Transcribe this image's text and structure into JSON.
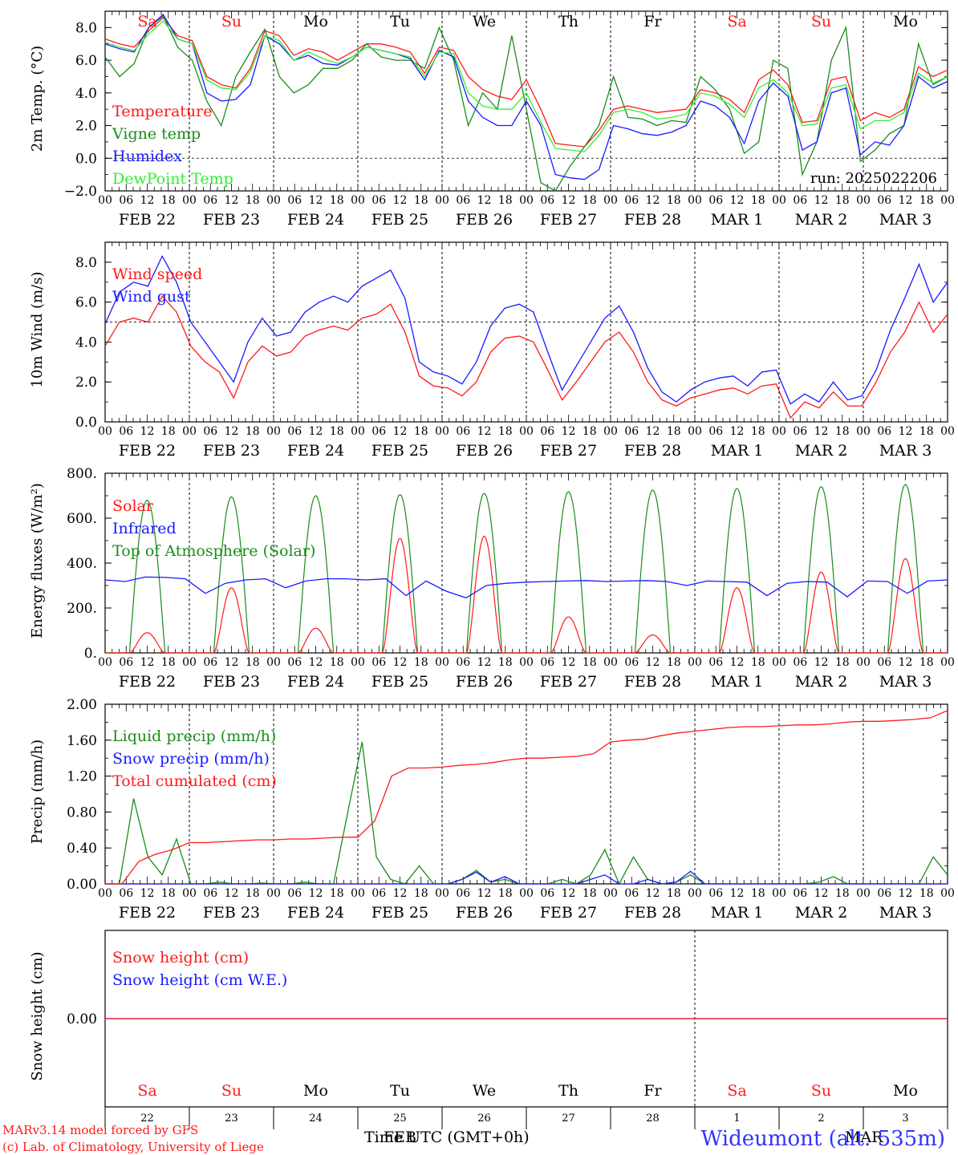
{
  "colors": {
    "red": "#ff1a1a",
    "green": "#1a8c1a",
    "blue": "#1a1aff",
    "lightgreen": "#33ee33",
    "black": "#000000",
    "titleblue": "#3333ff"
  },
  "days": {
    "labels": [
      "Sa",
      "Su",
      "Mo",
      "Tu",
      "We",
      "Th",
      "Fr",
      "Sa",
      "Su",
      "Mo"
    ],
    "weekend": [
      true,
      true,
      false,
      false,
      false,
      false,
      false,
      true,
      true,
      false
    ],
    "dates": [
      "FEB 22",
      "FEB 23",
      "FEB 24",
      "FEB 25",
      "FEB 26",
      "FEB 27",
      "FEB 28",
      "MAR  1",
      "MAR  2",
      "MAR  3"
    ],
    "day_numbers": [
      "22",
      "23",
      "24",
      "25",
      "26",
      "27",
      "28",
      "1",
      "2",
      "3"
    ],
    "hour_ticks": [
      "00",
      "06",
      "12",
      "18"
    ],
    "end_tick": "00"
  },
  "footer": {
    "credit1": "MARv3.14 model forced by GFS",
    "credit2": "(c) Lab. of Climatology, University of Liege",
    "axis_title": "Time UTC (GMT+0h)",
    "month_feb": "FEB",
    "month_mar": "MAR",
    "station": "Wideumont (alt. 535m)"
  },
  "chart_data": [
    {
      "id": "temp",
      "type": "line",
      "ylabel": "2m Temp. (°C)",
      "ylim": [
        -2,
        9
      ],
      "ticks": [
        -2,
        0,
        2,
        4,
        6,
        8
      ],
      "tick_labels": [
        "−2.0",
        "0.0",
        "2.0",
        "4.0",
        "6.0",
        "8.0"
      ],
      "ref_line": 0,
      "run_label": "run: 2025022206",
      "series": [
        {
          "name": "Temperature",
          "color": "red",
          "values": [
            7.3,
            7.0,
            6.8,
            7.8,
            8.6,
            7.5,
            7.2,
            5.0,
            4.5,
            4.3,
            5.5,
            7.8,
            7.5,
            6.3,
            6.7,
            6.5,
            6.0,
            6.5,
            7.0,
            7.0,
            6.8,
            6.5,
            5.2,
            6.8,
            6.6,
            5.0,
            4.2,
            3.8,
            3.6,
            4.8,
            3.0,
            0.9,
            0.8,
            0.7,
            1.7,
            3.0,
            3.2,
            3.0,
            2.8,
            2.9,
            3.0,
            4.2,
            4.0,
            3.6,
            2.8,
            4.8,
            5.4,
            4.5,
            2.2,
            2.3,
            4.8,
            5.0,
            2.3,
            2.8,
            2.5,
            3.0,
            5.6,
            5.0,
            5.4
          ]
        },
        {
          "name": "Vigne temp",
          "color": "green",
          "values": [
            6.2,
            5.0,
            5.8,
            8.0,
            8.7,
            6.8,
            6.0,
            3.5,
            2.0,
            5.0,
            6.5,
            7.9,
            5.0,
            4.0,
            4.5,
            5.5,
            5.5,
            6.0,
            7.0,
            6.2,
            6.0,
            6.0,
            5.5,
            8.0,
            6.0,
            2.0,
            4.0,
            3.0,
            7.5,
            3.0,
            -1.5,
            -2.8,
            -0.5,
            0.7,
            2.0,
            5.0,
            2.5,
            2.4,
            2.0,
            2.3,
            2.2,
            5.0,
            4.2,
            3.0,
            0.3,
            1.0,
            6.0,
            5.5,
            -1.0,
            1.0,
            6.0,
            8.0,
            -0.2,
            0.5,
            1.5,
            2.0,
            7.0,
            4.5,
            5.0
          ]
        },
        {
          "name": "Humidex",
          "color": "blue",
          "values": [
            7.0,
            6.7,
            6.5,
            8.0,
            8.8,
            7.3,
            7.0,
            4.0,
            3.5,
            3.6,
            4.5,
            7.5,
            7.0,
            6.0,
            6.3,
            5.8,
            5.7,
            6.2,
            6.8,
            6.6,
            6.4,
            6.1,
            4.8,
            6.6,
            6.2,
            3.5,
            2.5,
            2.0,
            2.0,
            3.5,
            2.0,
            -1.0,
            -1.2,
            -1.3,
            -0.7,
            2.0,
            1.8,
            1.5,
            1.4,
            1.6,
            2.0,
            3.5,
            3.2,
            2.5,
            0.9,
            3.5,
            4.6,
            3.8,
            0.5,
            1.0,
            4.0,
            4.3,
            0.2,
            1.0,
            0.8,
            2.0,
            5.0,
            4.3,
            4.7
          ]
        },
        {
          "name": "DewPoint Temp",
          "color": "lightgreen",
          "values": [
            7.1,
            6.8,
            6.6,
            7.6,
            8.4,
            7.3,
            7.0,
            4.8,
            4.3,
            4.2,
            5.3,
            7.5,
            7.2,
            6.0,
            6.5,
            6.1,
            5.8,
            6.2,
            6.8,
            6.6,
            6.4,
            6.2,
            5.0,
            6.5,
            6.4,
            4.0,
            3.2,
            3.0,
            3.0,
            4.0,
            2.2,
            0.6,
            0.5,
            0.4,
            1.4,
            2.8,
            3.0,
            2.8,
            2.4,
            2.5,
            2.7,
            4.0,
            3.8,
            3.3,
            2.5,
            4.3,
            4.8,
            4.0,
            2.0,
            2.1,
            4.3,
            4.5,
            1.8,
            2.3,
            2.3,
            2.8,
            5.2,
            4.6,
            5.0
          ]
        }
      ]
    },
    {
      "id": "wind",
      "type": "line",
      "ylabel": "10m Wind (m/s)",
      "ylim": [
        0,
        9
      ],
      "ticks": [
        0,
        2,
        4,
        6,
        8
      ],
      "tick_labels": [
        "0.0",
        "2.0",
        "4.0",
        "6.0",
        "8.0"
      ],
      "ref_line": 5,
      "series": [
        {
          "name": "Wind speed",
          "color": "red",
          "values": [
            3.8,
            5.0,
            5.2,
            5.0,
            6.3,
            5.5,
            3.8,
            3.0,
            2.5,
            1.2,
            3.0,
            3.8,
            3.3,
            3.5,
            4.3,
            4.6,
            4.8,
            4.6,
            5.2,
            5.4,
            5.9,
            4.5,
            2.3,
            1.8,
            1.7,
            1.3,
            2.0,
            3.5,
            4.2,
            4.3,
            4.0,
            2.6,
            1.1,
            2.0,
            3.0,
            4.0,
            4.5,
            3.5,
            2.0,
            1.1,
            0.8,
            1.2,
            1.4,
            1.6,
            1.7,
            1.4,
            1.8,
            1.9,
            0.2,
            1.0,
            0.7,
            1.5,
            0.8,
            0.8,
            2.0,
            3.5,
            4.5,
            6.0,
            4.5,
            5.4
          ]
        },
        {
          "name": "Wind gust",
          "color": "blue",
          "values": [
            4.9,
            6.5,
            7.0,
            6.8,
            8.3,
            7.0,
            5.0,
            4.0,
            3.0,
            2.0,
            4.0,
            5.2,
            4.3,
            4.5,
            5.5,
            6.0,
            6.3,
            6.0,
            6.8,
            7.2,
            7.6,
            6.2,
            3.0,
            2.5,
            2.3,
            1.9,
            3.0,
            4.8,
            5.7,
            5.9,
            5.5,
            3.5,
            1.6,
            2.8,
            4.0,
            5.2,
            5.8,
            4.5,
            2.7,
            1.5,
            1.0,
            1.6,
            2.0,
            2.2,
            2.3,
            1.8,
            2.5,
            2.6,
            0.9,
            1.4,
            1.0,
            2.0,
            1.1,
            1.3,
            2.6,
            4.6,
            6.2,
            7.9,
            6.0,
            7.0
          ]
        }
      ]
    },
    {
      "id": "energy",
      "type": "line",
      "ylabel": "Energy fluxes (W/m²)",
      "ylim": [
        0,
        800
      ],
      "ticks": [
        0,
        200,
        400,
        600,
        800
      ],
      "tick_labels": [
        "0.",
        "200.",
        "400.",
        "600.",
        "800."
      ],
      "series": [
        {
          "name": "Solar",
          "color": "red",
          "day_peaks": [
            90,
            290,
            110,
            510,
            520,
            160,
            80,
            290,
            360,
            420
          ]
        },
        {
          "name": "Infrared",
          "color": "blue",
          "values": [
            325,
            318,
            338,
            336,
            330,
            265,
            310,
            325,
            330,
            290,
            320,
            330,
            330,
            325,
            330,
            255,
            320,
            275,
            245,
            300,
            310,
            315,
            318,
            320,
            322,
            318,
            320,
            322,
            318,
            300,
            320,
            318,
            315,
            255,
            310,
            318,
            315,
            250,
            320,
            318,
            265,
            320,
            325
          ]
        },
        {
          "name": "Top of Atmosphere (Solar)",
          "color": "green",
          "day_peaks": [
            680,
            695,
            700,
            705,
            710,
            718,
            725,
            732,
            740,
            750
          ]
        }
      ]
    },
    {
      "id": "precip",
      "type": "line",
      "ylabel": "Precip (mm/h)",
      "ylim": [
        0,
        2
      ],
      "ticks": [
        0,
        0.4,
        0.8,
        1.2,
        1.6,
        2.0
      ],
      "tick_labels": [
        "0.00",
        "0.40",
        "0.80",
        "1.20",
        "1.60",
        "2.00"
      ],
      "series": [
        {
          "name": "Liquid precip (mm/h)",
          "color": "green",
          "values": [
            0,
            0,
            0.95,
            0.3,
            0.1,
            0.5,
            0,
            0,
            0.02,
            0,
            0,
            0.01,
            0,
            0,
            0.02,
            0,
            0,
            0.8,
            1.58,
            0.3,
            0.05,
            0,
            0.2,
            0,
            0,
            0.05,
            0.15,
            0.02,
            0.05,
            0,
            0,
            0,
            0.05,
            0,
            0.1,
            0.38,
            0,
            0.3,
            0.05,
            0,
            0.02,
            0.1,
            0,
            0,
            0,
            0,
            0,
            0,
            0,
            0,
            0.02,
            0.08,
            0,
            0,
            0,
            0,
            0,
            0,
            0.3,
            0.1
          ]
        },
        {
          "name": "Snow precip (mm/h)",
          "color": "blue",
          "values": [
            0,
            0,
            0,
            0,
            0,
            0,
            0,
            0,
            0,
            0,
            0,
            0,
            0,
            0,
            0,
            0,
            0,
            0,
            0,
            0,
            0,
            0,
            0,
            0,
            0,
            0.05,
            0.13,
            0.02,
            0.08,
            0,
            0,
            0,
            0,
            0,
            0.05,
            0.1,
            0,
            0,
            0.05,
            0,
            0.02,
            0.14,
            0,
            0,
            0,
            0,
            0,
            0,
            0,
            0,
            0,
            0,
            0,
            0,
            0,
            0,
            0,
            0,
            0,
            0
          ]
        },
        {
          "name": "Total cumulated (cm)",
          "color": "red",
          "values": [
            0,
            0,
            0.25,
            0.33,
            0.38,
            0.46,
            0.46,
            0.47,
            0.48,
            0.49,
            0.49,
            0.5,
            0.5,
            0.51,
            0.52,
            0.52,
            0.7,
            1.2,
            1.29,
            1.29,
            1.3,
            1.32,
            1.33,
            1.35,
            1.38,
            1.4,
            1.4,
            1.41,
            1.42,
            1.45,
            1.58,
            1.6,
            1.61,
            1.65,
            1.68,
            1.7,
            1.72,
            1.74,
            1.75,
            1.75,
            1.76,
            1.77,
            1.77,
            1.78,
            1.8,
            1.81,
            1.81,
            1.82,
            1.83,
            1.85,
            1.93
          ]
        }
      ]
    },
    {
      "id": "snow",
      "type": "line",
      "ylabel": "Snow height (cm)",
      "ticks": [
        0
      ],
      "tick_labels": [
        "0.00"
      ],
      "series": [
        {
          "name": "Snow height (cm)",
          "color": "red",
          "values": [
            0,
            0
          ]
        },
        {
          "name": "Snow height (cm W.E.)",
          "color": "blue",
          "values": [
            0,
            0
          ]
        }
      ]
    }
  ]
}
